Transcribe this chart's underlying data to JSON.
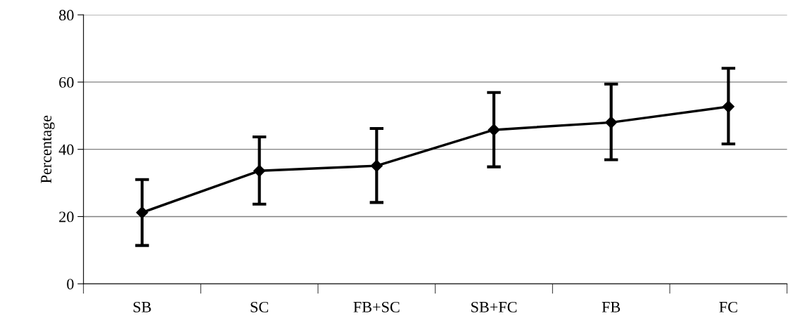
{
  "chart_data": {
    "type": "line",
    "ylabel": "Percentage",
    "categories": [
      "SB",
      "SC",
      "FB+SC",
      "SB+FC",
      "FB",
      "FC"
    ],
    "series": [
      {
        "color": "#000000",
        "values": [
          21.2,
          33.6,
          35.1,
          45.8,
          48.0,
          52.7
        ],
        "errors": [
          [
            11.4,
            31.0
          ],
          [
            23.7,
            43.7
          ],
          [
            24.2,
            46.2
          ],
          [
            34.8,
            56.9
          ],
          [
            36.9,
            59.4
          ],
          [
            41.6,
            64.1
          ]
        ]
      }
    ],
    "ylim": [
      0,
      80
    ],
    "yticks": [
      0,
      20,
      40,
      60,
      80
    ],
    "grid": "y",
    "marker": "diamond",
    "line_style": "solid"
  }
}
